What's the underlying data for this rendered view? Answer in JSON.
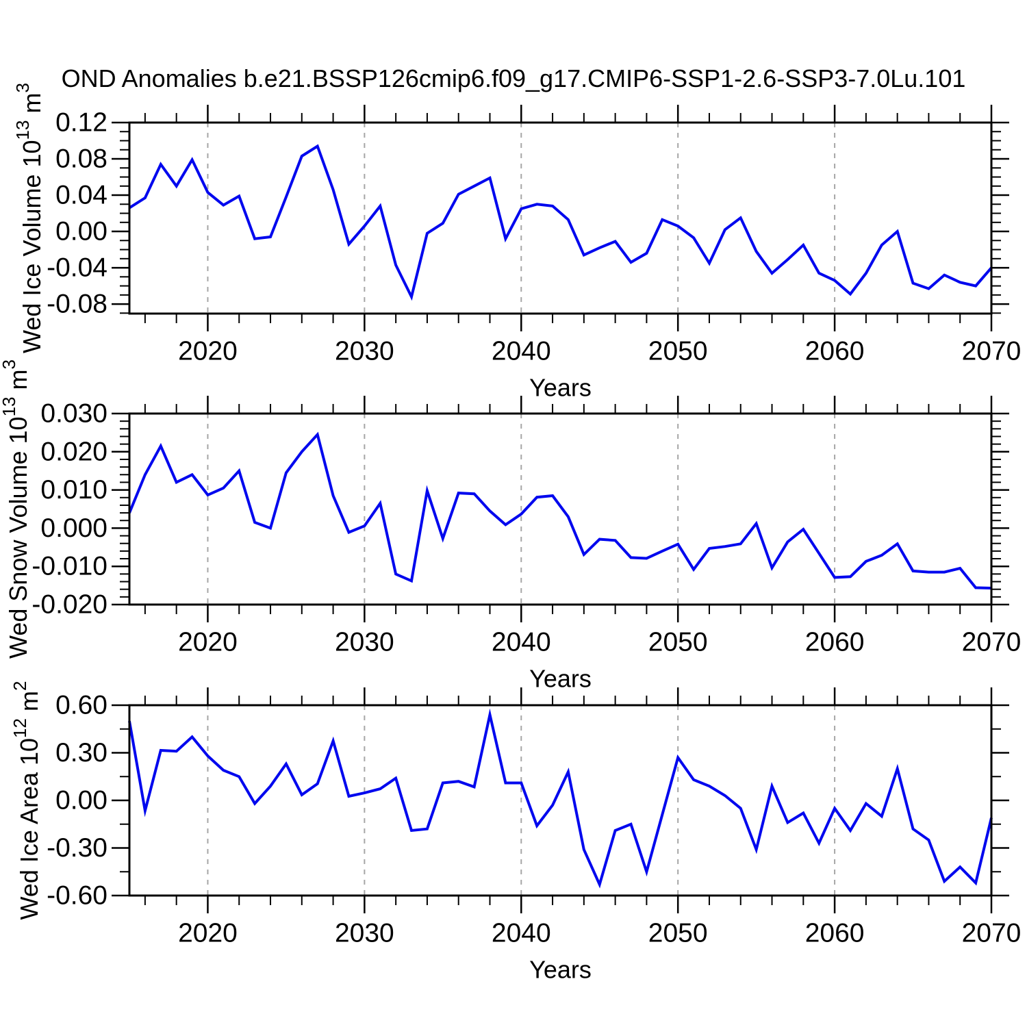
{
  "title": "OND Anomalies b.e21.BSSP126cmip6.f09_g17.CMIP6-SSP1-2.6-SSP3-7.0Lu.101",
  "colors": {
    "line": "#0008EE",
    "grid": "#A6A6A6",
    "axis": "#000000",
    "text": "#000000"
  },
  "years": [
    2015,
    2016,
    2017,
    2018,
    2019,
    2020,
    2021,
    2022,
    2023,
    2024,
    2025,
    2026,
    2027,
    2028,
    2029,
    2030,
    2031,
    2032,
    2033,
    2034,
    2035,
    2036,
    2037,
    2038,
    2039,
    2040,
    2041,
    2042,
    2043,
    2044,
    2045,
    2046,
    2047,
    2048,
    2049,
    2050,
    2051,
    2052,
    2053,
    2054,
    2055,
    2056,
    2057,
    2058,
    2059,
    2060,
    2061,
    2062,
    2063,
    2064,
    2065,
    2066,
    2067,
    2068,
    2069,
    2070
  ],
  "chart_data": [
    {
      "type": "line",
      "name": "wed-ice-volume",
      "ylabel": "Wed Ice Volume 10^13^ m^3^",
      "xlabel": "Years",
      "xlim": [
        2015,
        2070
      ],
      "ylim": [
        -0.0905,
        0.12
      ],
      "x_major_ticks": [
        2020,
        2030,
        2040,
        2050,
        2060,
        2070
      ],
      "x_tick_labels": [
        "2020",
        "2030",
        "2040",
        "2050",
        "2060",
        "2070"
      ],
      "x_minor_step": 2,
      "grid_x": [
        2020,
        2030,
        2040,
        2050,
        2060
      ],
      "y_major_ticks": [
        0.12,
        0.08,
        0.04,
        0.0,
        -0.04,
        -0.08
      ],
      "y_tick_labels": [
        "0.12",
        "0.08",
        "0.04",
        "0.00",
        "-0.04",
        "-0.08"
      ],
      "y_minor_step": 0.01,
      "values": [
        0.026,
        0.037,
        0.074,
        0.05,
        0.079,
        0.043,
        0.029,
        0.039,
        -0.008,
        -0.006,
        0.038,
        0.083,
        0.094,
        0.046,
        -0.014,
        0.006,
        0.028,
        -0.037,
        -0.072,
        -0.002,
        0.009,
        0.041,
        0.05,
        0.059,
        -0.008,
        0.025,
        0.03,
        0.028,
        0.013,
        -0.026,
        -0.018,
        -0.011,
        -0.034,
        -0.024,
        0.013,
        0.006,
        -0.007,
        -0.035,
        0.002,
        0.015,
        -0.022,
        -0.046,
        -0.031,
        -0.015,
        -0.046,
        -0.054,
        -0.069,
        -0.046,
        -0.015,
        0.0,
        -0.057,
        -0.063,
        -0.048,
        -0.056,
        -0.06,
        -0.04
      ]
    },
    {
      "type": "line",
      "name": "wed-snow-volume",
      "ylabel": "Wed Snow Volume 10^13^ m^3^",
      "xlabel": "Years",
      "xlim": [
        2015,
        2070
      ],
      "ylim": [
        -0.02,
        0.03
      ],
      "x_major_ticks": [
        2020,
        2030,
        2040,
        2050,
        2060,
        2070
      ],
      "x_tick_labels": [
        "2020",
        "2030",
        "2040",
        "2050",
        "2060",
        "2070"
      ],
      "x_minor_step": 2,
      "grid_x": [
        2020,
        2030,
        2040,
        2050,
        2060
      ],
      "y_major_ticks": [
        0.03,
        0.02,
        0.01,
        0.0,
        -0.01,
        -0.02
      ],
      "y_tick_labels": [
        "0.030",
        "0.020",
        "0.010",
        "0.000",
        "-0.010",
        "-0.020"
      ],
      "y_minor_step": 0.002,
      "values": [
        0.004,
        0.014,
        0.0215,
        0.012,
        0.014,
        0.0087,
        0.0105,
        0.015,
        0.0015,
        0.0,
        0.0145,
        0.02,
        0.0245,
        0.0085,
        -0.0011,
        0.0006,
        0.0065,
        -0.012,
        -0.0138,
        0.0098,
        -0.0027,
        0.0092,
        0.009,
        0.0045,
        0.0009,
        0.0037,
        0.0081,
        0.0085,
        0.003,
        -0.0069,
        -0.0029,
        -0.0032,
        -0.0077,
        -0.0079,
        -0.006,
        -0.0042,
        -0.0108,
        -0.0053,
        -0.0048,
        -0.0041,
        0.0012,
        -0.0104,
        -0.0036,
        -0.0003,
        -0.0066,
        -0.0129,
        -0.0127,
        -0.0087,
        -0.0071,
        -0.0041,
        -0.0112,
        -0.0115,
        -0.0115,
        -0.0105,
        -0.0156,
        -0.0157
      ]
    },
    {
      "type": "line",
      "name": "wed-ice-area",
      "ylabel": "Wed Ice Area 10^12^ m^2^",
      "xlabel": "Years",
      "xlim": [
        2015,
        2070
      ],
      "ylim": [
        -0.6,
        0.6
      ],
      "x_major_ticks": [
        2020,
        2030,
        2040,
        2050,
        2060,
        2070
      ],
      "x_tick_labels": [
        "2020",
        "2030",
        "2040",
        "2050",
        "2060",
        "2070"
      ],
      "x_minor_step": 2,
      "grid_x": [
        2020,
        2030,
        2040,
        2050,
        2060
      ],
      "y_major_ticks": [
        0.6,
        0.3,
        0.0,
        -0.3,
        -0.6
      ],
      "y_tick_labels": [
        "0.60",
        "0.30",
        "0.00",
        "-0.30",
        "-0.60"
      ],
      "y_minor_step": 0.15,
      "values": [
        0.5,
        -0.065,
        0.315,
        0.31,
        0.4,
        0.28,
        0.19,
        0.15,
        -0.02,
        0.09,
        0.23,
        0.035,
        0.105,
        0.375,
        0.026,
        0.047,
        0.073,
        0.14,
        -0.19,
        -0.18,
        0.11,
        0.12,
        0.085,
        0.54,
        0.11,
        0.11,
        -0.16,
        -0.03,
        0.18,
        -0.31,
        -0.53,
        -0.19,
        -0.15,
        -0.45,
        -0.09,
        0.27,
        0.13,
        0.09,
        0.03,
        -0.05,
        -0.31,
        0.09,
        -0.14,
        -0.08,
        -0.27,
        -0.05,
        -0.19,
        -0.02,
        -0.1,
        0.2,
        -0.18,
        -0.25,
        -0.51,
        -0.42,
        -0.52,
        -0.11
      ]
    }
  ]
}
